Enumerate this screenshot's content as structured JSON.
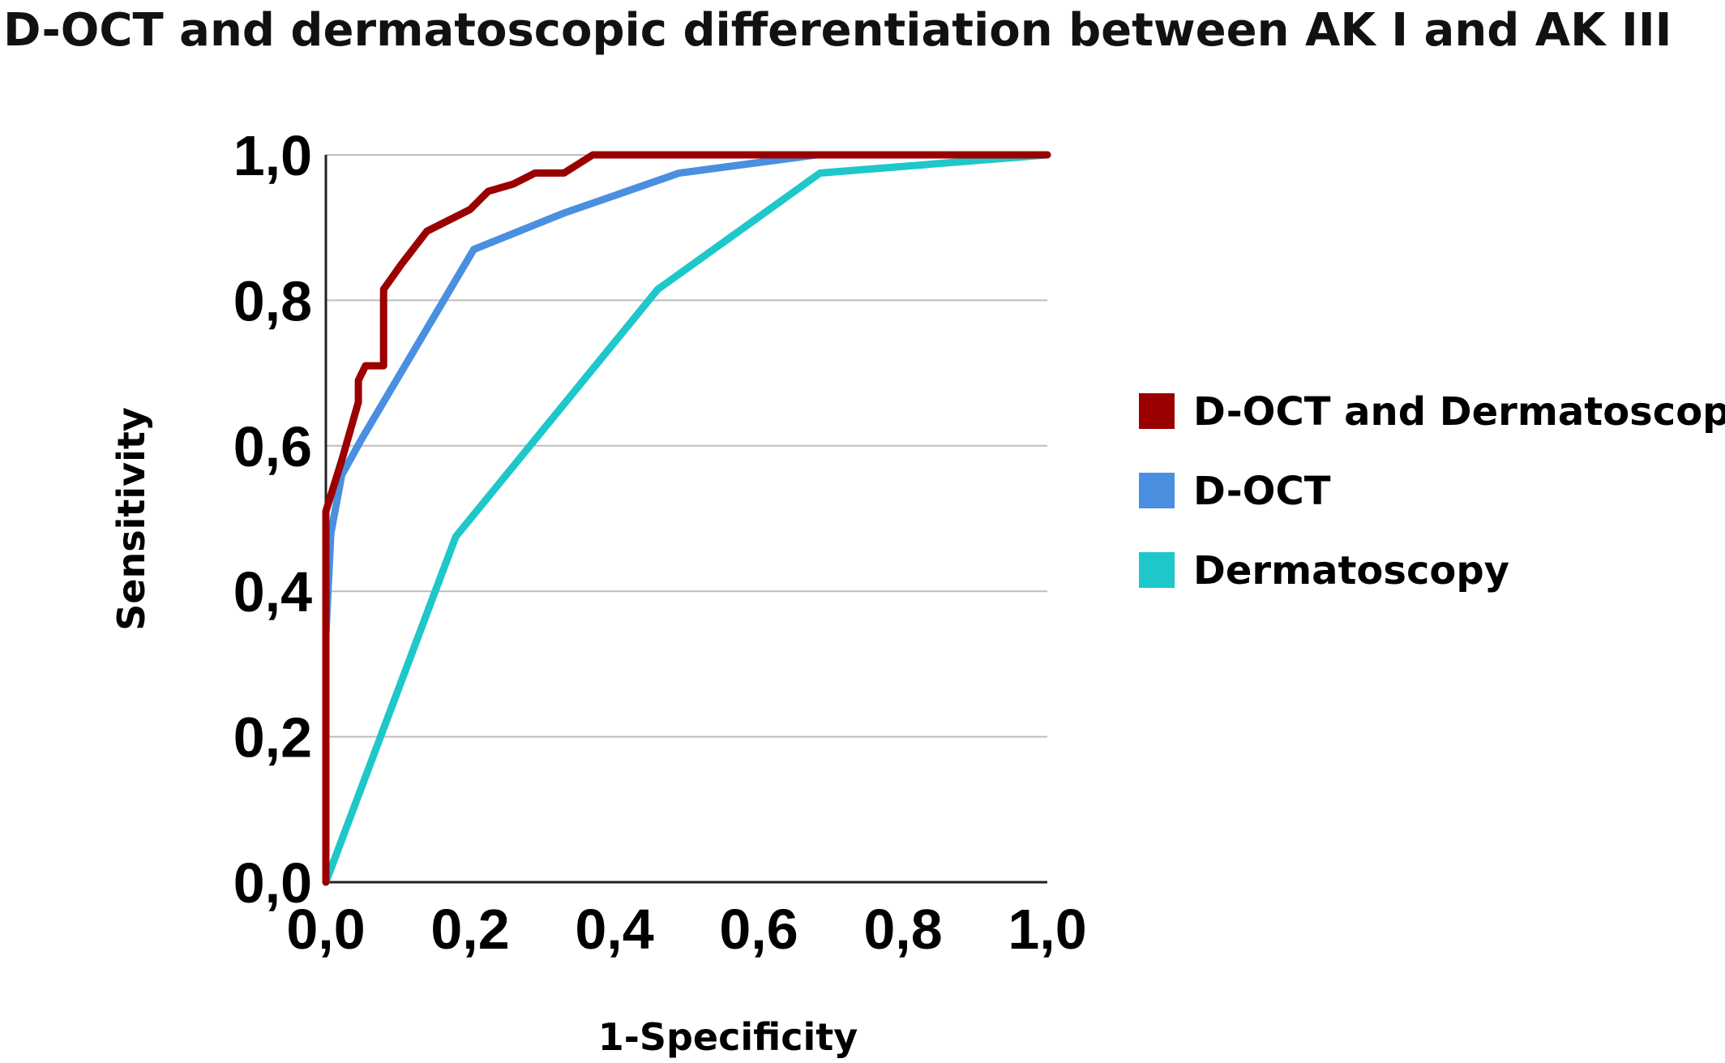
{
  "chart_data": {
    "type": "line",
    "title": "D-OCT and dermatoscopic differentiation between AK I and AK III",
    "xlabel": "1-Specificity",
    "ylabel": "Sensitivity",
    "xlim": [
      0,
      1
    ],
    "ylim": [
      0,
      1
    ],
    "x_ticks": [
      "0,0",
      "0,2",
      "0,4",
      "0,6",
      "0,8",
      "1,0"
    ],
    "y_ticks": [
      "0,0",
      "0,2",
      "0,4",
      "0,6",
      "0,8",
      "1,0"
    ],
    "grid": "horizontal",
    "legend_position": "right",
    "series": [
      {
        "name": "D-OCT and Dermatoscopy",
        "color": "#9b0000",
        "points": [
          [
            0,
            0
          ],
          [
            0,
            0.51
          ],
          [
            0.022,
            0.58
          ],
          [
            0.045,
            0.66
          ],
          [
            0.045,
            0.69
          ],
          [
            0.055,
            0.71
          ],
          [
            0.08,
            0.71
          ],
          [
            0.08,
            0.815
          ],
          [
            0.105,
            0.85
          ],
          [
            0.14,
            0.895
          ],
          [
            0.2,
            0.925
          ],
          [
            0.225,
            0.95
          ],
          [
            0.26,
            0.96
          ],
          [
            0.29,
            0.975
          ],
          [
            0.33,
            0.975
          ],
          [
            0.37,
            1.0
          ],
          [
            1.0,
            1.0
          ]
        ]
      },
      {
        "name": "D-OCT",
        "color": "#4a8fe0",
        "points": [
          [
            0,
            0
          ],
          [
            0,
            0.34
          ],
          [
            0.007,
            0.48
          ],
          [
            0.022,
            0.56
          ],
          [
            0.05,
            0.61
          ],
          [
            0.205,
            0.87
          ],
          [
            0.33,
            0.92
          ],
          [
            0.49,
            0.975
          ],
          [
            0.68,
            1.0
          ],
          [
            1.0,
            1.0
          ]
        ]
      },
      {
        "name": "Dermatoscopy",
        "color": "#1ec7c9",
        "points": [
          [
            0,
            0
          ],
          [
            0.18,
            0.475
          ],
          [
            0.46,
            0.815
          ],
          [
            0.685,
            0.975
          ],
          [
            1.0,
            1.0
          ]
        ]
      }
    ]
  }
}
